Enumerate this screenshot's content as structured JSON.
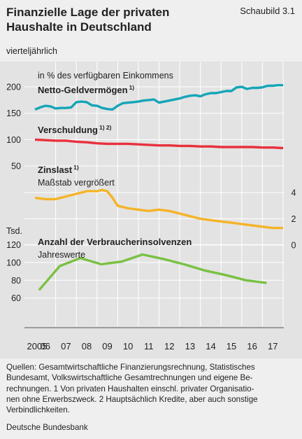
{
  "header": {
    "title_line1": "Finanzielle Lage der privaten",
    "title_line2": "Haushalte in Deutschland",
    "figure_label": "Schaubild 3.1",
    "subtitle": "vierteljährlich"
  },
  "footer": {
    "sources_line1": "Quellen: Gesamtwirtschaftliche Finanzierungsrechnung, Statistisches",
    "sources_line2": "Bundesamt, Volkswirtschaftliche Gesamtrechnungen und eigene Be-",
    "sources_line3": "rechnungen. 1 Von privaten Haushalten einschl. privater Organisatio-",
    "sources_line4": "nen ohne Erwerbszweck. 2 Hauptsächlich Kredite, aber auch sonstige",
    "sources_line5": "Verbindlichkeiten.",
    "publisher": "Deutsche Bundesbank"
  },
  "colors": {
    "net_assets": "#14a5b8",
    "debt": "#e8313c",
    "interest": "#f5b327",
    "insolvencies": "#79c142",
    "grid": "#ffffff",
    "panel": "#e3e3e3"
  },
  "chart_data": [
    {
      "type": "line",
      "unit_label": "in % des verfügbaren Einkommens",
      "x_axis_ticks": [
        "2005",
        "06",
        "07",
        "08",
        "09",
        "10",
        "11",
        "12",
        "13",
        "14",
        "15",
        "16",
        "17"
      ],
      "xlim": [
        2005,
        2017
      ],
      "ylim": [
        50,
        200
      ],
      "y_ticks": [
        50,
        100,
        150,
        200
      ],
      "series": [
        {
          "name": "Netto-Geldvermögen",
          "footnote": "1)",
          "x": [
            2005.0,
            2005.25,
            2005.5,
            2005.75,
            2006.0,
            2006.25,
            2006.5,
            2006.75,
            2007.0,
            2007.25,
            2007.5,
            2007.75,
            2008.0,
            2008.25,
            2008.5,
            2008.75,
            2009.0,
            2009.25,
            2009.5,
            2009.75,
            2010.0,
            2010.25,
            2010.5,
            2010.75,
            2011.0,
            2011.25,
            2011.5,
            2011.75,
            2012.0,
            2012.25,
            2012.5,
            2012.75,
            2013.0,
            2013.25,
            2013.5,
            2013.75,
            2014.0,
            2014.25,
            2014.5,
            2014.75,
            2015.0,
            2015.25,
            2015.5,
            2015.75,
            2016.0,
            2016.25,
            2016.5,
            2016.75,
            2017.0
          ],
          "values": [
            157,
            161,
            164,
            163,
            159,
            160,
            160,
            161,
            171,
            172,
            171,
            165,
            164,
            160,
            158,
            157,
            164,
            169,
            170,
            171,
            172,
            174,
            175,
            176,
            170,
            172,
            174,
            176,
            178,
            181,
            183,
            184,
            182,
            186,
            188,
            188,
            190,
            192,
            192,
            199,
            200,
            196,
            198,
            198,
            199,
            202,
            202,
            203,
            203
          ]
        },
        {
          "name": "Verschuldung",
          "footnote": "1) 2)",
          "x": [
            2005.0,
            2005.5,
            2006.0,
            2006.5,
            2007.0,
            2007.5,
            2008.0,
            2008.5,
            2009.0,
            2009.5,
            2010.0,
            2010.5,
            2011.0,
            2011.5,
            2012.0,
            2012.5,
            2013.0,
            2013.5,
            2014.0,
            2014.5,
            2015.0,
            2015.5,
            2016.0,
            2016.5,
            2017.0
          ],
          "values": [
            100,
            99,
            98,
            98,
            96,
            95,
            93,
            92,
            92,
            92,
            91,
            90,
            89,
            89,
            88,
            88,
            87,
            87,
            86,
            86,
            86,
            86,
            85,
            85,
            84
          ]
        },
        {
          "name": "Zinslast",
          "footnote": "1)",
          "note": "Maßstab vergrößert",
          "axis": "right",
          "x": [
            2005.0,
            2005.5,
            2006.0,
            2006.5,
            2007.0,
            2007.5,
            2008.0,
            2008.25,
            2008.5,
            2008.75,
            2009.0,
            2009.5,
            2010.0,
            2010.5,
            2011.0,
            2011.5,
            2012.0,
            2012.5,
            2013.0,
            2013.5,
            2014.0,
            2014.5,
            2015.0,
            2015.5,
            2016.0,
            2016.5,
            2017.0
          ],
          "values": [
            3.6,
            3.5,
            3.5,
            3.7,
            3.9,
            4.1,
            4.1,
            4.2,
            4.1,
            3.6,
            3.0,
            2.8,
            2.7,
            2.6,
            2.7,
            2.6,
            2.4,
            2.2,
            2.0,
            1.9,
            1.8,
            1.7,
            1.6,
            1.5,
            1.4,
            1.3,
            1.3
          ]
        }
      ],
      "right_axis": {
        "ylim": [
          0,
          4
        ],
        "y_ticks": [
          0,
          2,
          4
        ]
      }
    },
    {
      "type": "line",
      "unit_label": "Tsd.",
      "xlim": [
        2005,
        2017
      ],
      "ylim": [
        60,
        120
      ],
      "y_ticks": [
        60,
        80,
        100,
        120
      ],
      "series": [
        {
          "name": "Anzahl der Verbraucherinsolvenzen",
          "note": "Jahreswerte",
          "x": [
            2005.0,
            2006.0,
            2007.0,
            2008.0,
            2009.0,
            2010.0,
            2011.0,
            2012.0,
            2013.0,
            2014.0,
            2015.0,
            2016.0
          ],
          "values": [
            69,
            96,
            105,
            98,
            101,
            109,
            104,
            98,
            91,
            86,
            80,
            77
          ]
        }
      ]
    }
  ]
}
